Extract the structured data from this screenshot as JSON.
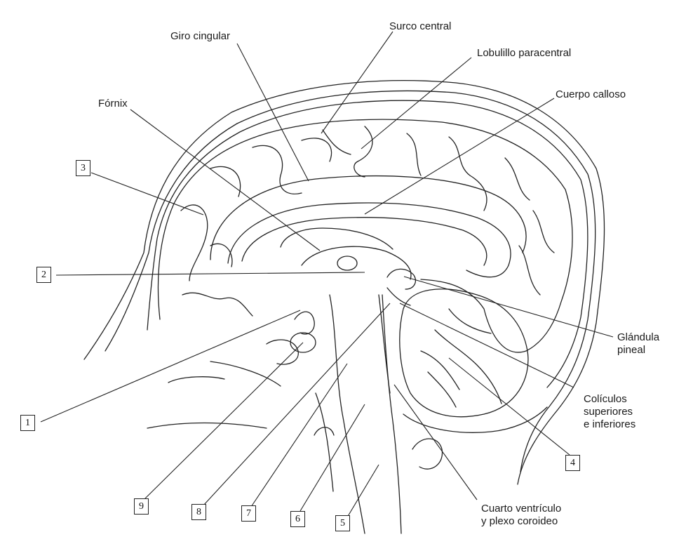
{
  "labels": {
    "giro_cingular": "Giro cingular",
    "surco_central": "Surco central",
    "lobulillo_paracentral": "Lobulillo paracentral",
    "cuerpo_calloso": "Cuerpo calloso",
    "fornix": "Fórnix",
    "glandula_pineal_1": "Glándula",
    "glandula_pineal_2": "pineal",
    "coliculos_1": "Colículos",
    "coliculos_2": "superiores",
    "coliculos_3": "e inferiores",
    "cuarto_ventriculo_1": "Cuarto ventrículo",
    "cuarto_ventriculo_2": "y plexo coroideo"
  },
  "numbered_boxes": [
    "1",
    "2",
    "3",
    "4",
    "5",
    "6",
    "7",
    "8",
    "9"
  ]
}
